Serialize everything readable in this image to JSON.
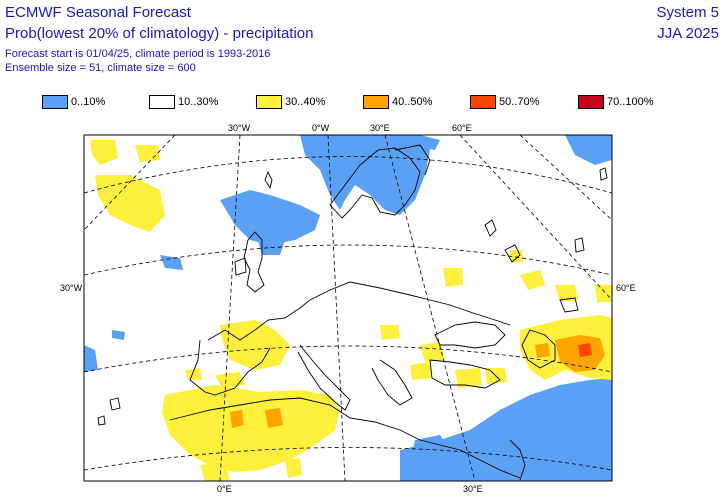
{
  "header": {
    "title": "ECMWF Seasonal Forecast",
    "subtitle": "Prob(lowest 20% of climatology) - precipitation",
    "info_line1": "Forecast start is 01/04/25, climate period is 1993-2016",
    "info_line2": "Ensemble size = 51, climate size = 600",
    "system": "System 5",
    "season": "JJA 2025"
  },
  "legend": [
    {
      "label": "0..10%",
      "color": "#5aa0f5"
    },
    {
      "label": "10..30%",
      "color": "#ffffff"
    },
    {
      "label": "30..40%",
      "color": "#fff03c"
    },
    {
      "label": "40..50%",
      "color": "#ffa500"
    },
    {
      "label": "50..70%",
      "color": "#ff4500"
    },
    {
      "label": "70..100%",
      "color": "#c8001e"
    }
  ],
  "map": {
    "labels": {
      "top_30w": "30°W",
      "top_0": "0°W",
      "top_30e": "30°E",
      "top_60e": "60°E",
      "left_30w": "30°W",
      "right_60e": "60°E",
      "bottom_0": "0°E",
      "bottom_30e": "30°E"
    },
    "colors": {
      "blue": "#5aa0f5",
      "yellow": "#fff03c",
      "orange": "#ffa500",
      "red": "#ff4500"
    }
  }
}
